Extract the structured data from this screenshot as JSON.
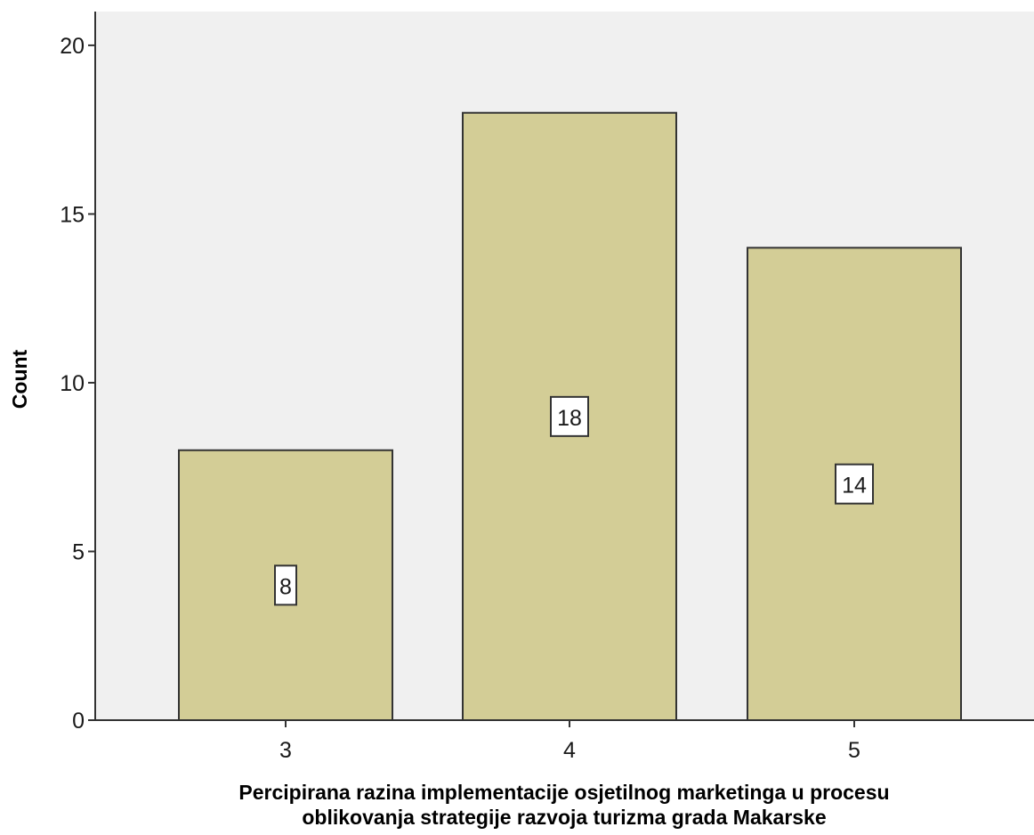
{
  "chart_data": {
    "type": "bar",
    "title": "",
    "categories": [
      "3",
      "4",
      "5"
    ],
    "values": [
      8,
      18,
      14
    ],
    "data_labels": [
      "8",
      "18",
      "14"
    ],
    "xlabel_lines": [
      "Percipirana razina implementacije osjetilnog marketinga u procesu",
      "oblikovanja strategije razvoja turizma grada Makarske"
    ],
    "ylabel": "Count",
    "ylim": [
      0,
      21
    ],
    "yticks": [
      "0",
      "5",
      "10",
      "15",
      "20"
    ],
    "grid": false,
    "legend": "none",
    "colors": {
      "bar_fill": "#d3cd96",
      "bar_stroke": "#333333",
      "plot_background": "#f0f0f0",
      "axis": "#333333"
    }
  }
}
